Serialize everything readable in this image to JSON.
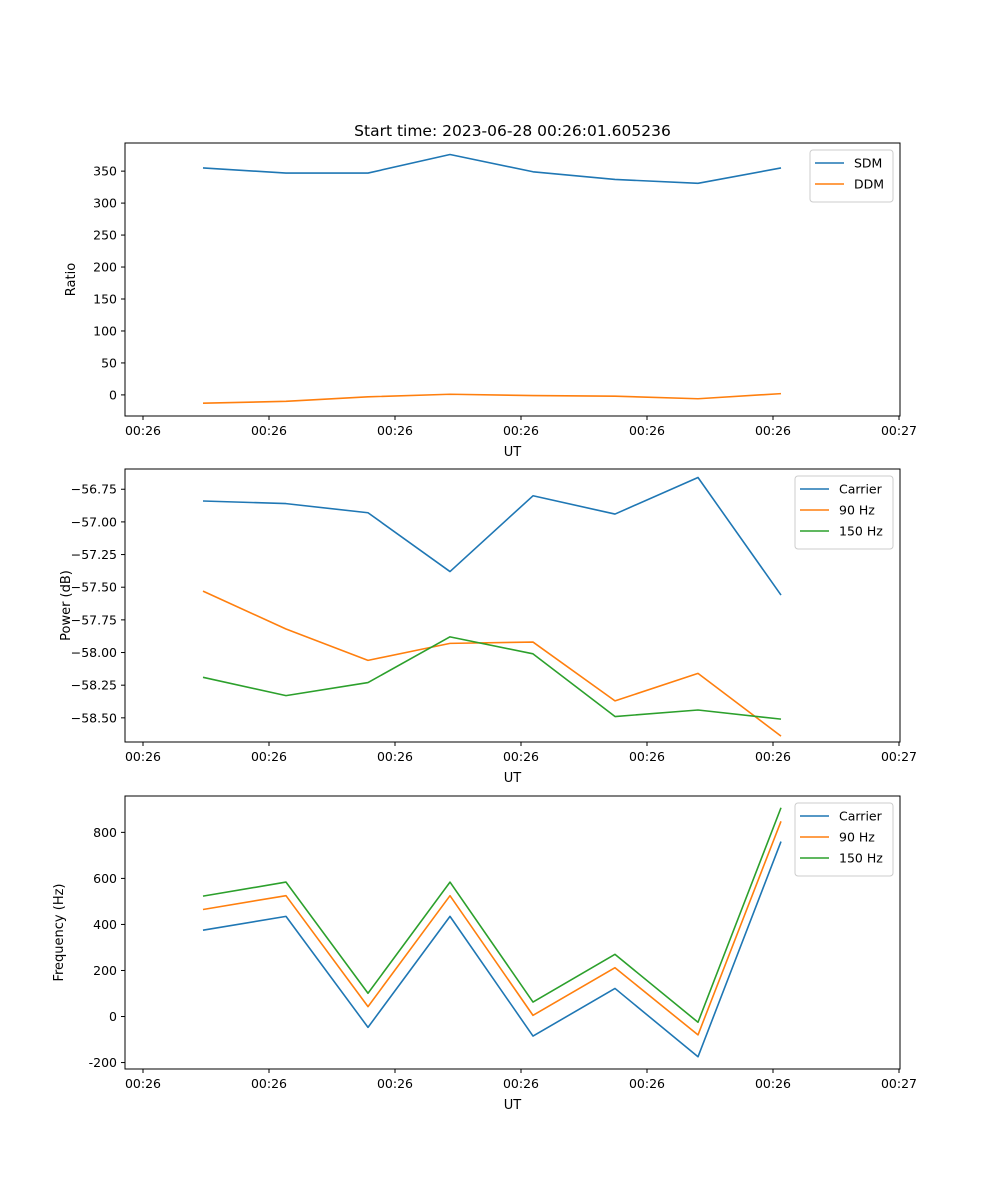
{
  "figure_title": "Start time: 2023-06-28 00:26:01.605236",
  "colors": {
    "blue": "#1f77b4",
    "orange": "#ff7f0e",
    "green": "#2ca02c"
  },
  "chart_data": [
    {
      "type": "line",
      "title": "Start time: 2023-06-28 00:26:01.605236",
      "xlabel": "UT",
      "ylabel": "Ratio",
      "x_ticks": [
        "00:26",
        "00:26",
        "00:26",
        "00:26",
        "00:26",
        "00:26",
        "00:27"
      ],
      "y_ticks": [
        0,
        50,
        100,
        150,
        200,
        250,
        300,
        350
      ],
      "ylim": [
        -33,
        394
      ],
      "grid": false,
      "legend": "upper-right",
      "series": [
        {
          "name": "SDM",
          "color": "#1f77b4",
          "values": [
            355,
            347,
            347,
            376,
            349,
            337,
            331,
            355
          ]
        },
        {
          "name": "DDM",
          "color": "#ff7f0e",
          "values": [
            -13,
            -10,
            -3,
            1,
            -1,
            -2,
            -6,
            2
          ]
        }
      ]
    },
    {
      "type": "line",
      "title": "",
      "xlabel": "UT",
      "ylabel": "Power (dB)",
      "x_ticks": [
        "00:26",
        "00:26",
        "00:26",
        "00:26",
        "00:26",
        "00:26",
        "00:27"
      ],
      "y_ticks": [
        "−58.50",
        "−58.25",
        "−58.00",
        "−57.75",
        "−57.50",
        "−57.25",
        "−57.00",
        "−56.75"
      ],
      "ylim": [
        -58.685,
        -56.595
      ],
      "grid": false,
      "legend": "upper-right",
      "series": [
        {
          "name": "Carrier",
          "color": "#1f77b4",
          "values": [
            -56.84,
            -56.86,
            -56.93,
            -57.38,
            -56.8,
            -56.94,
            -56.66,
            -57.56
          ]
        },
        {
          "name": "90 Hz",
          "color": "#ff7f0e",
          "values": [
            -57.53,
            -57.82,
            -58.06,
            -57.93,
            -57.92,
            -58.37,
            -58.16,
            -58.64
          ]
        },
        {
          "name": "150 Hz",
          "color": "#2ca02c",
          "values": [
            -58.19,
            -58.33,
            -58.23,
            -57.88,
            -58.01,
            -58.49,
            -58.44,
            -58.51
          ]
        }
      ]
    },
    {
      "type": "line",
      "title": "",
      "xlabel": "UT",
      "ylabel": "Frequency (Hz)",
      "x_ticks": [
        "00:26",
        "00:26",
        "00:26",
        "00:26",
        "00:26",
        "00:26",
        "00:27"
      ],
      "y_ticks": [
        -200,
        0,
        200,
        400,
        600,
        800
      ],
      "ylim": [
        -228,
        958
      ],
      "grid": false,
      "legend": "upper-right",
      "series": [
        {
          "name": "Carrier",
          "color": "#1f77b4",
          "values": [
            375,
            435,
            -47,
            435,
            -85,
            122,
            -175,
            760
          ]
        },
        {
          "name": "90 Hz",
          "color": "#ff7f0e",
          "values": [
            465,
            525,
            43,
            525,
            5,
            212,
            -80,
            848
          ]
        },
        {
          "name": "150 Hz",
          "color": "#2ca02c",
          "values": [
            523,
            584,
            101,
            584,
            63,
            270,
            -25,
            907
          ]
        }
      ]
    }
  ]
}
